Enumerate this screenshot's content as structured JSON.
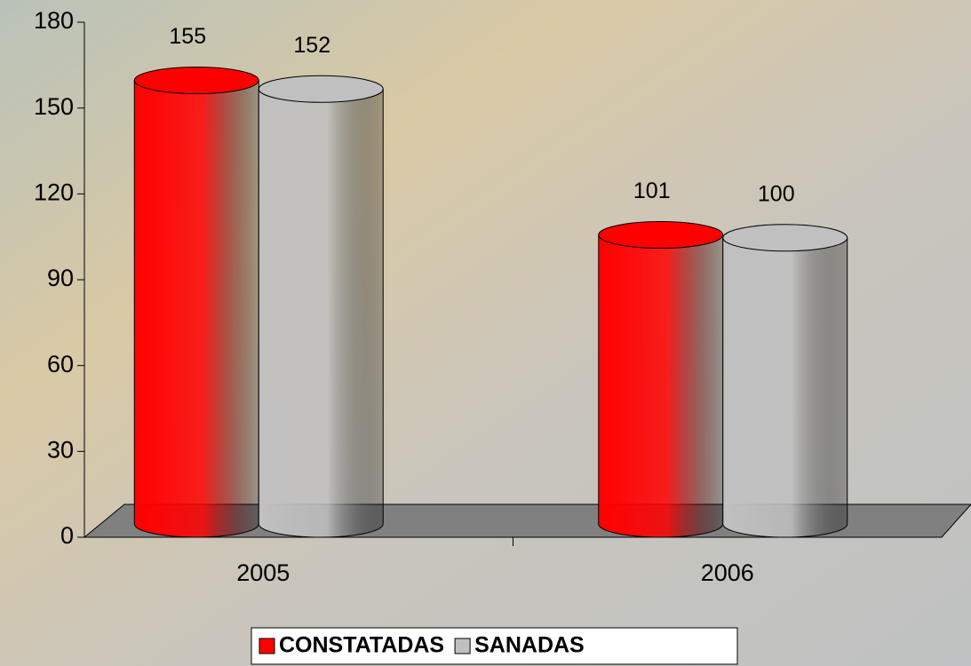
{
  "chart_data": {
    "type": "bar3d",
    "categories": [
      "2005",
      "2006"
    ],
    "series": [
      {
        "name": "CONSTATADAS",
        "color": "#ff0000",
        "values": [
          155,
          101
        ]
      },
      {
        "name": "SANADAS",
        "color": "#c0c0c0",
        "values": [
          152,
          100
        ]
      }
    ],
    "ylim": [
      0,
      180
    ],
    "yticks": [
      0,
      30,
      60,
      90,
      120,
      150,
      180
    ],
    "legend": "bottom"
  }
}
